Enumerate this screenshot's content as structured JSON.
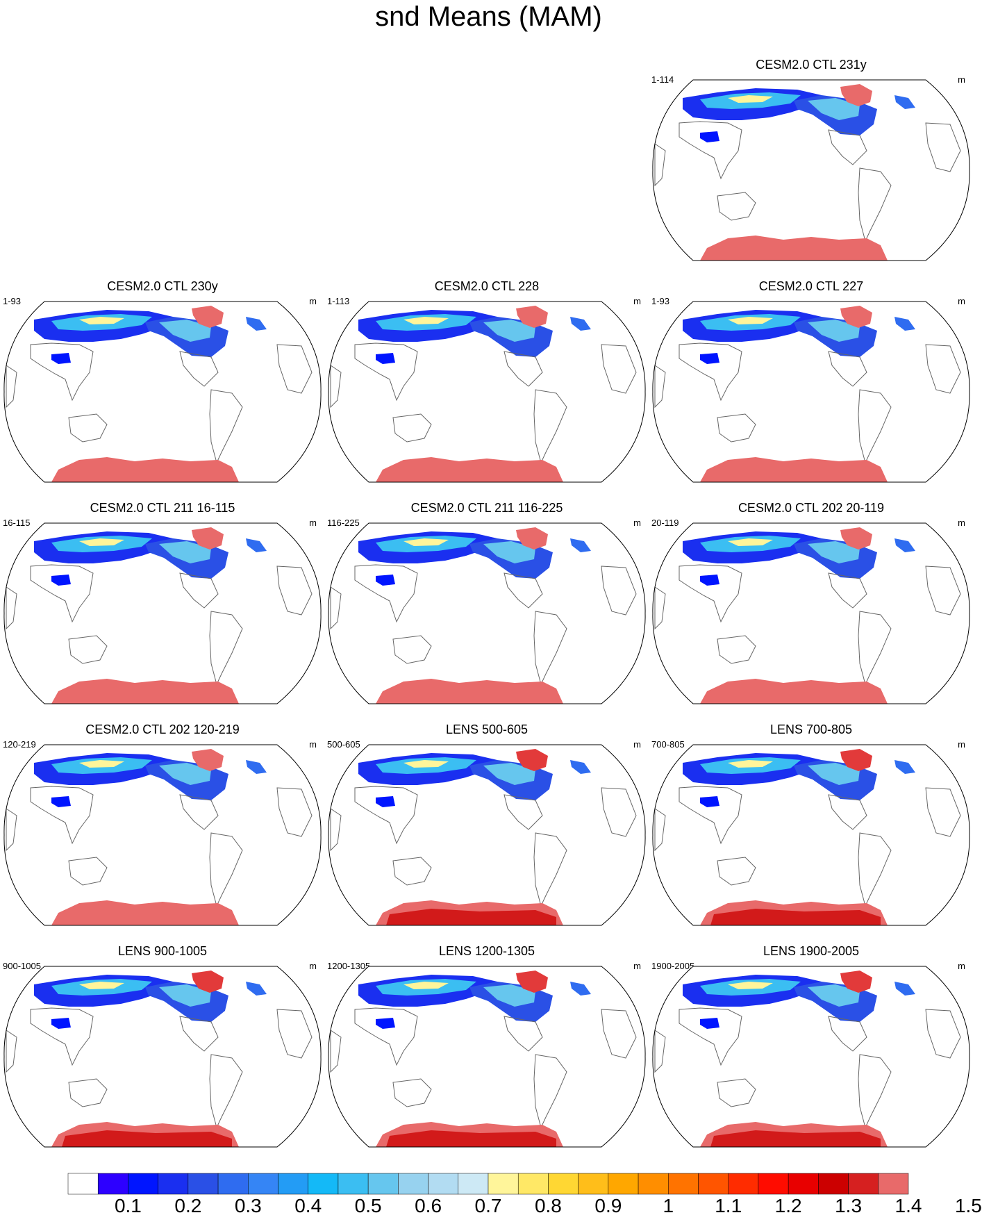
{
  "figure": {
    "title": "snd Means (MAM)",
    "units": "m",
    "colors": {
      "antarctica": "#e86a6a",
      "antarctica_dark": "#d21a1a",
      "greenland": "#e86a6a",
      "coast": "#666666"
    }
  },
  "panels": [
    {
      "title": "CESM2.0 CTL 231y",
      "left_label": "1-114",
      "right_label": "m",
      "lens": false
    },
    {
      "title": "CESM2.0 CTL 230y",
      "left_label": "1-93",
      "right_label": "m",
      "lens": false
    },
    {
      "title": "CESM2.0 CTL 228",
      "left_label": "1-113",
      "right_label": "m",
      "lens": false
    },
    {
      "title": "CESM2.0 CTL 227",
      "left_label": "1-93",
      "right_label": "m",
      "lens": false
    },
    {
      "title": "CESM2.0 CTL 211 16-115",
      "left_label": "16-115",
      "right_label": "m",
      "lens": false
    },
    {
      "title": "CESM2.0 CTL 211 116-225",
      "left_label": "116-225",
      "right_label": "m",
      "lens": false
    },
    {
      "title": "CESM2.0 CTL 202 20-119",
      "left_label": "20-119",
      "right_label": "m",
      "lens": false
    },
    {
      "title": "CESM2.0 CTL 202 120-219",
      "left_label": "120-219",
      "right_label": "m",
      "lens": false
    },
    {
      "title": "LENS 500-605",
      "left_label": "500-605",
      "right_label": "m",
      "lens": true
    },
    {
      "title": "LENS 700-805",
      "left_label": "700-805",
      "right_label": "m",
      "lens": true
    },
    {
      "title": "LENS 900-1005",
      "left_label": "900-1005",
      "right_label": "m",
      "lens": true
    },
    {
      "title": "LENS 1200-1305",
      "left_label": "1200-1305",
      "right_label": "m",
      "lens": true
    },
    {
      "title": "LENS 1900-2005",
      "left_label": "1900-2005",
      "right_label": "m",
      "lens": true
    }
  ],
  "colorbar": {
    "colors": [
      "#ffffff",
      "#2d00ff",
      "#0015ff",
      "#1a2ff0",
      "#2a50e6",
      "#2f6cf0",
      "#3585f5",
      "#239cf5",
      "#14b9f7",
      "#3bbef2",
      "#66c6ee",
      "#97d2ef",
      "#b2dcf2",
      "#cde9f5",
      "#fff59a",
      "#ffe866",
      "#ffd733",
      "#ffbe1a",
      "#ffa700",
      "#ff8e00",
      "#ff7300",
      "#ff5500",
      "#ff2c00",
      "#ff0c00",
      "#e80000",
      "#cc0000",
      "#d62020",
      "#e86a6a"
    ],
    "labels": [
      "0.1",
      "0.2",
      "0.3",
      "0.4",
      "0.5",
      "0.6",
      "0.7",
      "0.8",
      "0.9",
      "1",
      "1.1",
      "1.2",
      "1.3",
      "1.4",
      "1.5"
    ]
  }
}
